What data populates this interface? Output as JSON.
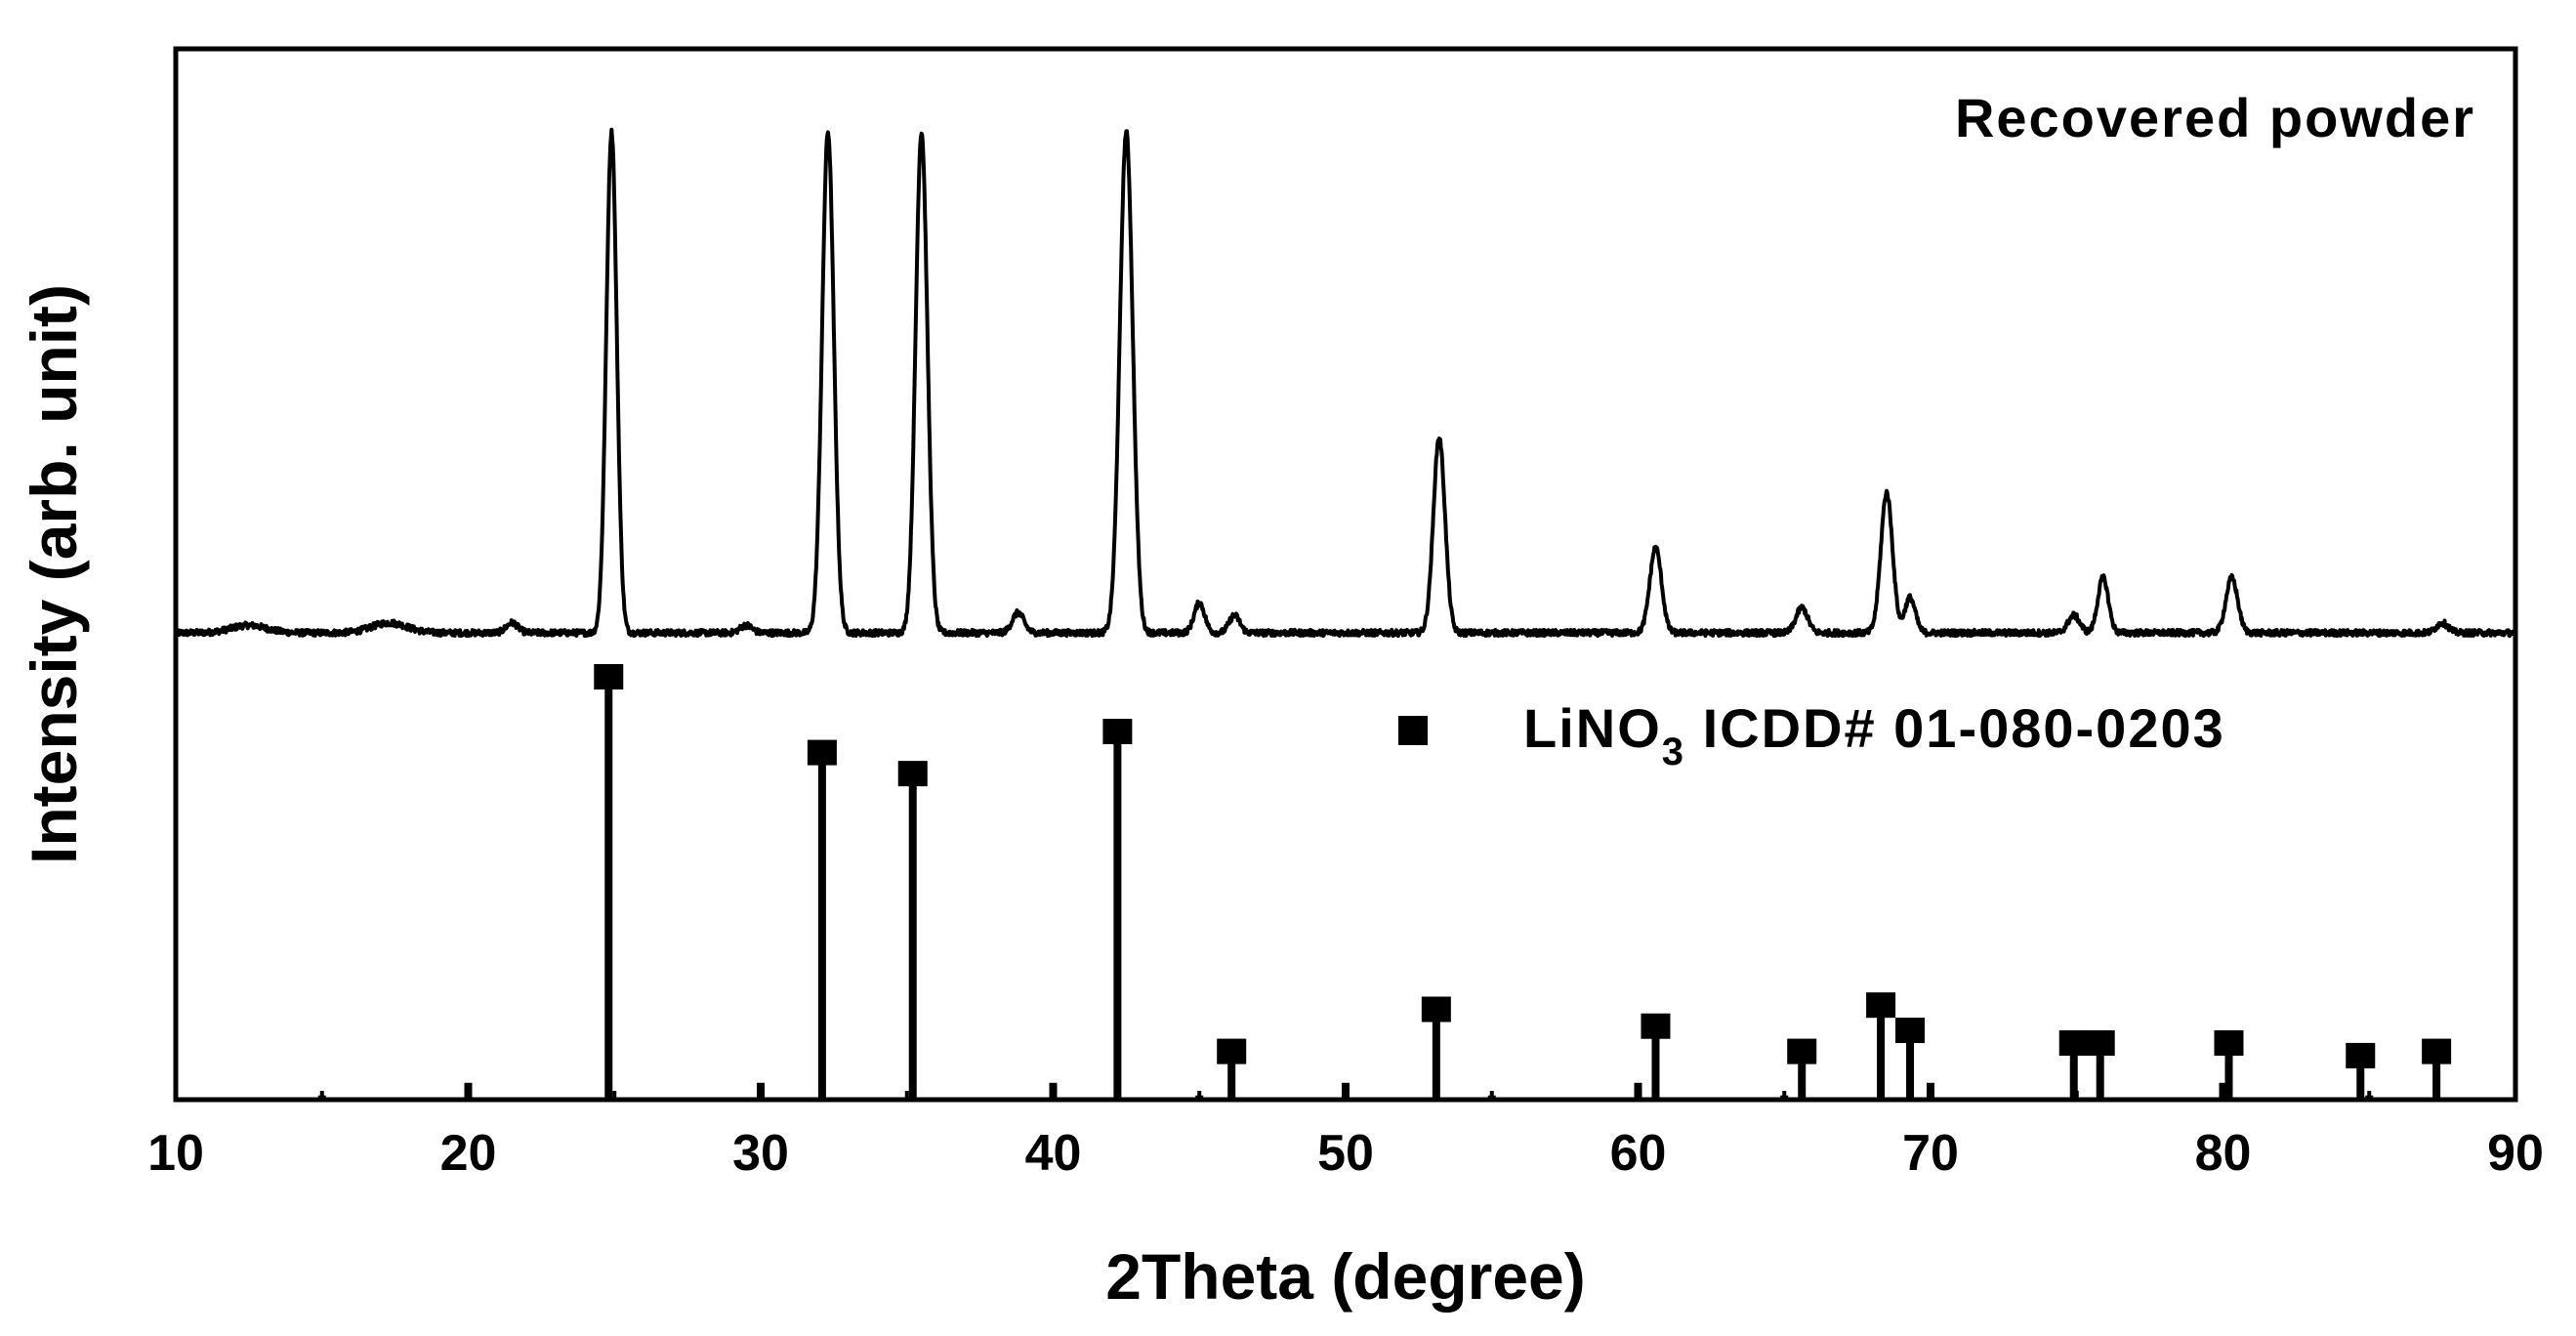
{
  "chart_data": {
    "type": "line",
    "xlabel": "2Theta (degree)",
    "ylabel": "Intensity (arb. unit)",
    "xlim": [
      10,
      90
    ],
    "xticks": [
      "10",
      "20",
      "30",
      "40",
      "50",
      "60",
      "70",
      "80",
      "90"
    ],
    "yticks_visible": false,
    "grid": false,
    "series": [
      {
        "name": "Recovered powder",
        "kind": "xrd-pattern",
        "baseline": 2,
        "peaks": [
          {
            "x": 12.5,
            "h": 1.5,
            "w": 0.6
          },
          {
            "x": 17.3,
            "h": 2,
            "w": 0.6
          },
          {
            "x": 21.5,
            "h": 2,
            "w": 0.2
          },
          {
            "x": 24.9,
            "h": 100,
            "w": 0.18
          },
          {
            "x": 29.5,
            "h": 1.5,
            "w": 0.2
          },
          {
            "x": 32.3,
            "h": 100,
            "w": 0.2
          },
          {
            "x": 35.5,
            "h": 100,
            "w": 0.2
          },
          {
            "x": 38.8,
            "h": 4,
            "w": 0.2
          },
          {
            "x": 42.5,
            "h": 100,
            "w": 0.22
          },
          {
            "x": 45.0,
            "h": 6,
            "w": 0.18
          },
          {
            "x": 46.2,
            "h": 3.5,
            "w": 0.18
          },
          {
            "x": 53.2,
            "h": 39,
            "w": 0.2
          },
          {
            "x": 60.6,
            "h": 17,
            "w": 0.2
          },
          {
            "x": 65.6,
            "h": 5,
            "w": 0.2
          },
          {
            "x": 68.5,
            "h": 28,
            "w": 0.2
          },
          {
            "x": 69.3,
            "h": 7,
            "w": 0.18
          },
          {
            "x": 74.9,
            "h": 3.5,
            "w": 0.2
          },
          {
            "x": 75.9,
            "h": 11,
            "w": 0.18
          },
          {
            "x": 80.3,
            "h": 11,
            "w": 0.2
          },
          {
            "x": 87.5,
            "h": 2,
            "w": 0.2
          }
        ]
      }
    ],
    "reference": {
      "label": "LiNO",
      "subscript": "3",
      "suffix": " ICDD# 01-080-0203",
      "sticks": [
        {
          "x": 15.0,
          "h": 1
        },
        {
          "x": 20.0,
          "h": 4
        },
        {
          "x": 24.8,
          "h": 100
        },
        {
          "x": 30.0,
          "h": 4
        },
        {
          "x": 32.1,
          "h": 82
        },
        {
          "x": 35.2,
          "h": 77
        },
        {
          "x": 40.0,
          "h": 4
        },
        {
          "x": 42.2,
          "h": 87
        },
        {
          "x": 45.0,
          "h": 1
        },
        {
          "x": 46.1,
          "h": 11
        },
        {
          "x": 50.0,
          "h": 4
        },
        {
          "x": 53.1,
          "h": 21
        },
        {
          "x": 55.0,
          "h": 1
        },
        {
          "x": 60.0,
          "h": 4
        },
        {
          "x": 60.6,
          "h": 17
        },
        {
          "x": 65.0,
          "h": 1
        },
        {
          "x": 65.6,
          "h": 11
        },
        {
          "x": 68.3,
          "h": 22
        },
        {
          "x": 69.3,
          "h": 16
        },
        {
          "x": 70.0,
          "h": 4
        },
        {
          "x": 74.9,
          "h": 13
        },
        {
          "x": 75.8,
          "h": 13
        },
        {
          "x": 80.0,
          "h": 4
        },
        {
          "x": 80.2,
          "h": 13
        },
        {
          "x": 84.7,
          "h": 10
        },
        {
          "x": 85.0,
          "h": 1
        },
        {
          "x": 87.3,
          "h": 11
        }
      ]
    },
    "annotations": {
      "pattern_label": "Recovered powder"
    }
  }
}
